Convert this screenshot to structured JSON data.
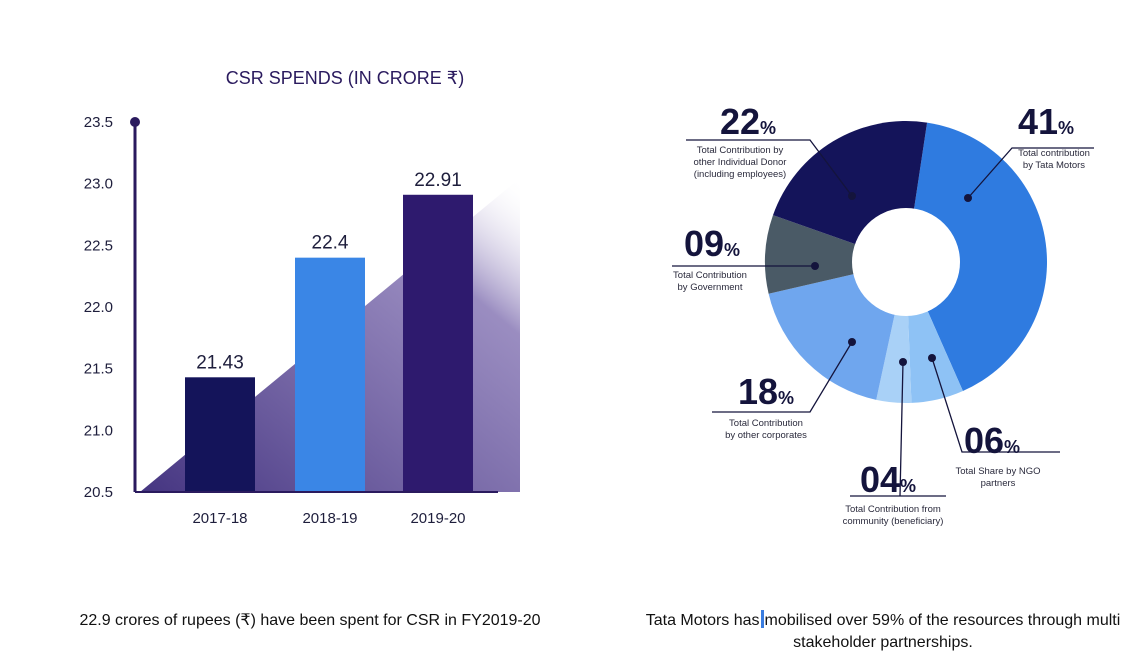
{
  "chart_data": [
    {
      "type": "bar",
      "title": "CSR SPENDS (IN CRORE ₹)",
      "categories": [
        "2017-18",
        "2018-19",
        "2019-20"
      ],
      "values": [
        21.43,
        22.4,
        22.91
      ],
      "value_labels": [
        "21.43",
        "22.4",
        "22.91"
      ],
      "yticks": [
        "23.5",
        "23.0",
        "22.5",
        "22.0",
        "21.5",
        "21.0",
        "20.5"
      ],
      "ylim": [
        20.5,
        23.5
      ],
      "colors": [
        "#14145a",
        "#3a86e6",
        "#2e1a6e"
      ],
      "shadow_color": "#4b3a8a",
      "axis_color": "#2a1a5e"
    },
    {
      "type": "pie",
      "donut": true,
      "slices": [
        {
          "value": 41,
          "pct_num": "41",
          "pct_sym": "%",
          "desc": [
            "Total contribution",
            "by Tata Motors"
          ],
          "color": "#2f7be0"
        },
        {
          "value": 6,
          "pct_num": "06",
          "pct_sym": "%",
          "desc": [
            "Total Share by NGO",
            "partners"
          ],
          "color": "#8ec2f5"
        },
        {
          "value": 4,
          "pct_num": "04",
          "pct_sym": "%",
          "desc": [
            "Total Contribution from",
            "community (beneficiary)"
          ],
          "color": "#a9d1f7"
        },
        {
          "value": 18,
          "pct_num": "18",
          "pct_sym": "%",
          "desc": [
            "Total Contribution",
            "by other corporates"
          ],
          "color": "#6fa6ee"
        },
        {
          "value": 9,
          "pct_num": "09",
          "pct_sym": "%",
          "desc": [
            "Total Contribution",
            "by Government"
          ],
          "color": "#4a5a66"
        },
        {
          "value": 22,
          "pct_num": "22",
          "pct_sym": "%",
          "desc": [
            "Total Contribution by",
            "other Individual Donor",
            "(including employees)"
          ],
          "color": "#14145a"
        }
      ]
    }
  ],
  "captions": {
    "left": "22.9 crores of rupees (₹) have been spent for CSR in FY2019-20",
    "right_part1": "Tata Motors has",
    "right_part2": "mobilised over 59% of the resources through multi stakeholder partnerships."
  }
}
